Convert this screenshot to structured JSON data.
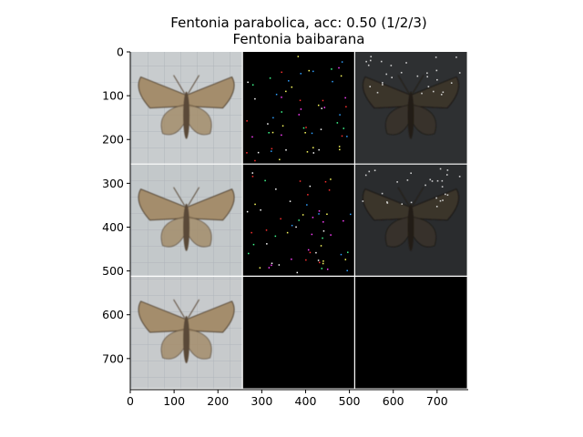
{
  "figure": {
    "title_line1": "Fentonia parabolica, acc: 0.50 (1/2/3)",
    "title_line2": "Fentonia baibarana"
  },
  "chart_data": {
    "type": "image-grid",
    "xlim": [
      0,
      771
    ],
    "ylim": [
      771,
      0
    ],
    "x_ticks": [
      0,
      100,
      200,
      300,
      400,
      500,
      600,
      700
    ],
    "y_ticks": [
      0,
      100,
      200,
      300,
      400,
      500,
      600,
      700
    ],
    "grid_rows": 3,
    "grid_cols": 3,
    "cell_size": 256,
    "tiles": [
      {
        "row": 0,
        "col": 0,
        "kind": "photo",
        "background": "#c8ccce"
      },
      {
        "row": 0,
        "col": 1,
        "kind": "saliency",
        "background": "#000000"
      },
      {
        "row": 0,
        "col": 2,
        "kind": "overlay",
        "background": "#2e3032"
      },
      {
        "row": 1,
        "col": 0,
        "kind": "photo",
        "background": "#c3c8ca"
      },
      {
        "row": 1,
        "col": 1,
        "kind": "saliency",
        "background": "#000000"
      },
      {
        "row": 1,
        "col": 2,
        "kind": "overlay",
        "background": "#2a2c2e"
      },
      {
        "row": 2,
        "col": 0,
        "kind": "photo",
        "background": "#c7cacc"
      },
      {
        "row": 2,
        "col": 1,
        "kind": "empty",
        "background": "#000000"
      },
      {
        "row": 2,
        "col": 2,
        "kind": "empty",
        "background": "#000000"
      }
    ],
    "separator_color": "#ffffff"
  }
}
